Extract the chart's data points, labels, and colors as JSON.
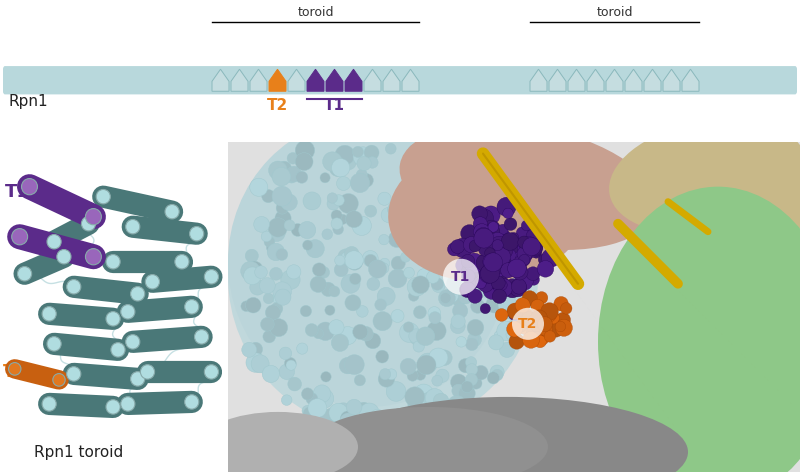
{
  "bg": "#ffffff",
  "bar_color": "#b8d8dc",
  "repeat_light": "#c5dde0",
  "repeat_light_edge": "#8ab8bc",
  "repeat_orange": "#e8801a",
  "repeat_purple": "#5b2b8a",
  "t1_color": "#5b2b8a",
  "t2_color": "#e8801a",
  "toroid_label": "toroid",
  "rpn1_label": "Rpn1",
  "rpn1_toroid_label": "Rpn1 toroid",
  "t1_text": "T1",
  "t2_text": "T2",
  "teal_dark": "#4a7878",
  "teal_light": "#8ecece",
  "teal_cap": "#b0dde0",
  "purple_helix": "#5b2b8a",
  "orange_helix": "#c05010",
  "orange_helix2": "#d06010",
  "yellow_ribbon": "#d4aa00",
  "surf_lightblue": "#bdd8dc",
  "surf_pink": "#c8a090",
  "surf_tan": "#c8b888",
  "surf_green": "#8ec888",
  "surf_gray": "#909090",
  "surf_gray2": "#b0b0b0"
}
